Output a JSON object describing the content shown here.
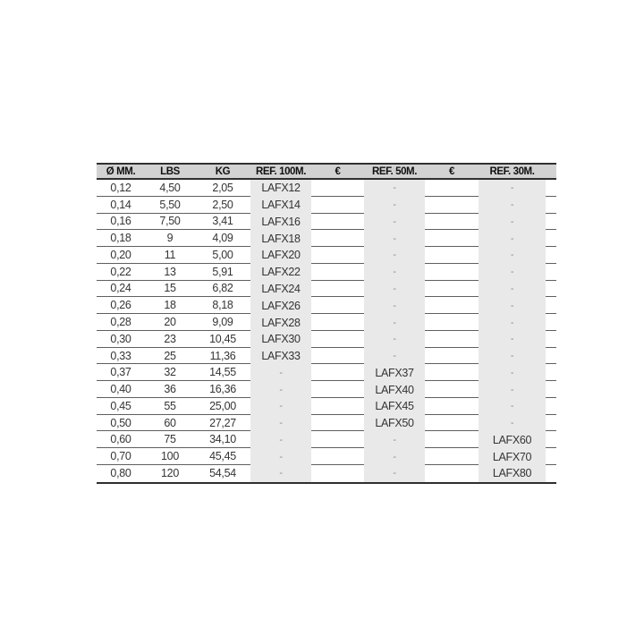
{
  "page": {
    "background_color": "#ffffff"
  },
  "table": {
    "colors": {
      "header_background": "#d2d2d2",
      "stripe_background": "#e9e9e9",
      "outer_border": "#2f2f2f",
      "row_separator": "#5f5f5f",
      "header_text": "#101010",
      "body_text": "#343434",
      "dash_text": "#8c8c8c"
    },
    "columns": [
      {
        "key": "diameter_mm",
        "label": "Ø MM.",
        "striped": false
      },
      {
        "key": "lbs",
        "label": "LBS",
        "striped": false
      },
      {
        "key": "kg",
        "label": "KG",
        "striped": false
      },
      {
        "key": "ref_100m",
        "label": "REF. 100M.",
        "striped": true
      },
      {
        "key": "eur_100m",
        "label": "€",
        "striped": false
      },
      {
        "key": "ref_50m",
        "label": "REF. 50M.",
        "striped": true
      },
      {
        "key": "eur_50m",
        "label": "€",
        "striped": false
      },
      {
        "key": "ref_30m",
        "label": "REF. 30M.",
        "striped": true
      }
    ],
    "rows": [
      [
        "0,12",
        "4,50",
        "2,05",
        "LAFX12",
        "",
        "-",
        "",
        "-"
      ],
      [
        "0,14",
        "5,50",
        "2,50",
        "LAFX14",
        "",
        "-",
        "",
        "-"
      ],
      [
        "0,16",
        "7,50",
        "3,41",
        "LAFX16",
        "",
        "-",
        "",
        "-"
      ],
      [
        "0,18",
        "9",
        "4,09",
        "LAFX18",
        "",
        "-",
        "",
        "-"
      ],
      [
        "0,20",
        "11",
        "5,00",
        "LAFX20",
        "",
        "-",
        "",
        "-"
      ],
      [
        "0,22",
        "13",
        "5,91",
        "LAFX22",
        "",
        "-",
        "",
        "-"
      ],
      [
        "0,24",
        "15",
        "6,82",
        "LAFX24",
        "",
        "-",
        "",
        "-"
      ],
      [
        "0,26",
        "18",
        "8,18",
        "LAFX26",
        "",
        "-",
        "",
        "-"
      ],
      [
        "0,28",
        "20",
        "9,09",
        "LAFX28",
        "",
        "-",
        "",
        "-"
      ],
      [
        "0,30",
        "23",
        "10,45",
        "LAFX30",
        "",
        "-",
        "",
        "-"
      ],
      [
        "0,33",
        "25",
        "11,36",
        "LAFX33",
        "",
        "-",
        "",
        "-"
      ],
      [
        "0,37",
        "32",
        "14,55",
        "-",
        "",
        "LAFX37",
        "",
        "-"
      ],
      [
        "0,40",
        "36",
        "16,36",
        "-",
        "",
        "LAFX40",
        "",
        "-"
      ],
      [
        "0,45",
        "55",
        "25,00",
        "-",
        "",
        "LAFX45",
        "",
        "-"
      ],
      [
        "0,50",
        "60",
        "27,27",
        "-",
        "",
        "LAFX50",
        "",
        "-"
      ],
      [
        "0,60",
        "75",
        "34,10",
        "-",
        "",
        "-",
        "",
        "LAFX60"
      ],
      [
        "0,70",
        "100",
        "45,45",
        "-",
        "",
        "-",
        "",
        "LAFX70"
      ],
      [
        "0,80",
        "120",
        "54,54",
        "-",
        "",
        "-",
        "",
        "LAFX80"
      ]
    ]
  }
}
